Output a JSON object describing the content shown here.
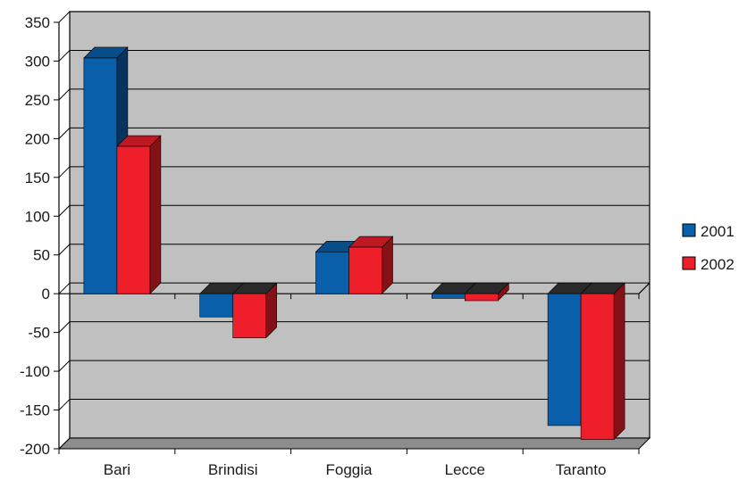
{
  "chart_data": {
    "type": "bar",
    "categories": [
      "Bari",
      "Brindisi",
      "Foggia",
      "Lecce",
      "Taranto"
    ],
    "series": [
      {
        "name": "2001",
        "values": [
          304,
          -30,
          54,
          -6,
          -170
        ],
        "color": "#0a5fab"
      },
      {
        "name": "2002",
        "values": [
          190,
          -57,
          60,
          -9,
          -188
        ],
        "color": "#ee1f2a"
      }
    ],
    "ylim": [
      -200,
      350
    ],
    "yticks": [
      "350",
      "300",
      "250",
      "200",
      "150",
      "100",
      "50",
      "0",
      "-50",
      "-100",
      "-150",
      "-200"
    ],
    "grid": true,
    "legend_position": "right",
    "plot_color": "#c0c0c0",
    "gridline_color": "#000000"
  }
}
